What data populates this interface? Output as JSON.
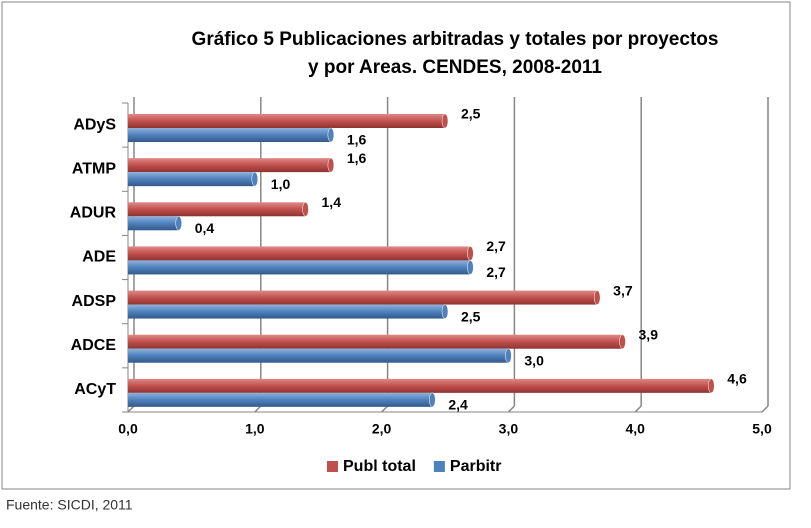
{
  "chart_data": {
    "type": "barh",
    "title": [
      "Gráfico 5 Publicaciones arbitradas y totales por proyectos",
      "y por Areas. CENDES, 2008-2011"
    ],
    "categories": [
      "ADyS",
      "ATMP",
      "ADUR",
      "ADE",
      "ADSP",
      "ADCE",
      "ACyT"
    ],
    "series": [
      {
        "name": "Publ total",
        "color": "#c0504d",
        "values": [
          2.5,
          1.6,
          1.4,
          2.7,
          3.7,
          3.9,
          4.6
        ],
        "value_labels": [
          "2,5",
          "1,6",
          "1,4",
          "2,7",
          "3,7",
          "3,9",
          "4,6"
        ]
      },
      {
        "name": "Parbitr",
        "color": "#4f81bd",
        "values": [
          1.6,
          1.0,
          0.4,
          2.7,
          2.5,
          3.0,
          2.4
        ],
        "value_labels": [
          "1,6",
          "1,0",
          "0,4",
          "2,7",
          "2,5",
          "3,0",
          "2,4"
        ]
      }
    ],
    "xlim": [
      0,
      5
    ],
    "xticks": [
      {
        "value": 0,
        "label": "0,0"
      },
      {
        "value": 1,
        "label": "1,0"
      },
      {
        "value": 2,
        "label": "2,0"
      },
      {
        "value": 3,
        "label": "3,0"
      },
      {
        "value": 4,
        "label": "4,0"
      },
      {
        "value": 5,
        "label": "5,0"
      }
    ],
    "grid": true,
    "legend": "bottom",
    "source": "Fuente: SICDI, 2011"
  }
}
